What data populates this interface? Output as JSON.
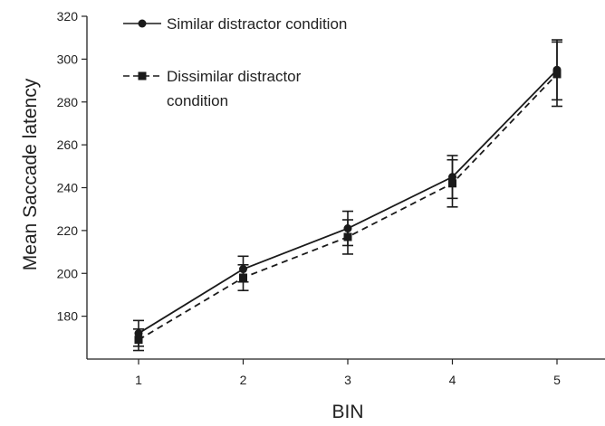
{
  "chart_data": {
    "type": "line",
    "title": "",
    "xlabel": "BIN",
    "ylabel": "Mean Saccade latency",
    "x": [
      1,
      2,
      3,
      4,
      5
    ],
    "xlim": [
      0.5,
      5.5
    ],
    "ylim": [
      160,
      320
    ],
    "yticks": [
      180,
      200,
      220,
      240,
      260,
      280,
      300,
      320
    ],
    "grid": false,
    "legend_position": "top-left",
    "series": [
      {
        "name": "Similar distractor condition",
        "marker": "circle",
        "line_style": "solid",
        "values": [
          172,
          202,
          221,
          245,
          295
        ],
        "error": [
          6,
          6,
          8,
          10,
          14
        ]
      },
      {
        "name": "Dissimilar distractor condition",
        "legend_lines": [
          "Dissimilar distractor",
          "condition"
        ],
        "marker": "square",
        "line_style": "dashed",
        "values": [
          169,
          198,
          217,
          242,
          293
        ],
        "error": [
          5,
          6,
          8,
          11,
          15
        ]
      }
    ],
    "colors": {
      "line": "#1a1a1a",
      "axis": "#222222"
    }
  }
}
